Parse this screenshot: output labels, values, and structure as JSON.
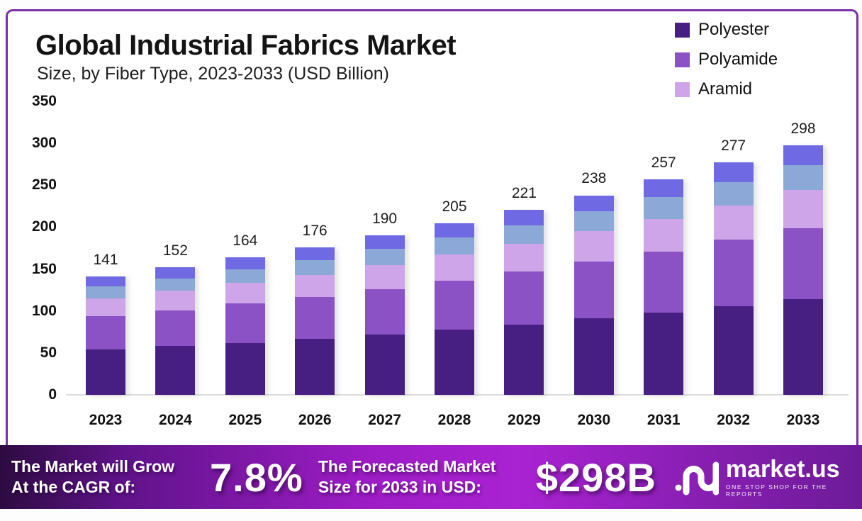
{
  "chart_data": {
    "type": "bar",
    "stacked": true,
    "title": "Global Industrial Fabrics Market",
    "subtitle": "Size, by Fiber Type, 2023-2033 (USD Billion)",
    "categories": [
      "2023",
      "2024",
      "2025",
      "2026",
      "2027",
      "2028",
      "2029",
      "2030",
      "2031",
      "2032",
      "2033"
    ],
    "totals": [
      141,
      152,
      164,
      176,
      190,
      205,
      221,
      238,
      257,
      277,
      298
    ],
    "series": [
      {
        "name": "Polyester",
        "color": "#471e82",
        "in_legend": true,
        "values": [
          54,
          58,
          62,
          67,
          72,
          78,
          84,
          91,
          98,
          106,
          114
        ]
      },
      {
        "name": "Polyamide",
        "color": "#8a52c4",
        "in_legend": true,
        "values": [
          40,
          43,
          47,
          50,
          54,
          58,
          63,
          68,
          73,
          79,
          85
        ]
      },
      {
        "name": "Aramid",
        "color": "#cda5e8",
        "in_legend": true,
        "values": [
          21,
          23,
          25,
          26,
          29,
          31,
          33,
          36,
          39,
          41,
          45
        ]
      },
      {
        "name": "unlabeled-steel-blue",
        "color": "#8ca8d6",
        "in_legend": false,
        "values": [
          14,
          15,
          16,
          18,
          19,
          21,
          22,
          24,
          26,
          28,
          30
        ]
      },
      {
        "name": "unlabeled-periwinkle",
        "color": "#6f6ae4",
        "in_legend": false,
        "values": [
          12,
          13,
          14,
          15,
          16,
          17,
          19,
          19,
          21,
          23,
          24
        ]
      }
    ],
    "y_ticks": [
      350,
      300,
      250,
      200,
      150,
      100,
      50,
      0
    ],
    "ylim": [
      0,
      350
    ],
    "xlabel": "",
    "ylabel": "",
    "grid": false,
    "legend_position": "top-right"
  },
  "banner": {
    "grow_line1": "The Market will Grow",
    "grow_line2": "At the CAGR of:",
    "cagr_value": "7.8%",
    "forecast_line1": "The Forecasted Market",
    "forecast_line2": "Size for 2033 in USD:",
    "forecast_value": "$298B",
    "logo_text": "market.us",
    "logo_tagline": "ONE STOP SHOP FOR THE REPORTS"
  },
  "colors": {
    "frame_border": "#7b2fa9",
    "banner_gradient_start": "#2d0b41",
    "banner_gradient_mid": "#aa22d2",
    "banner_gradient_end": "#6d1b98"
  }
}
